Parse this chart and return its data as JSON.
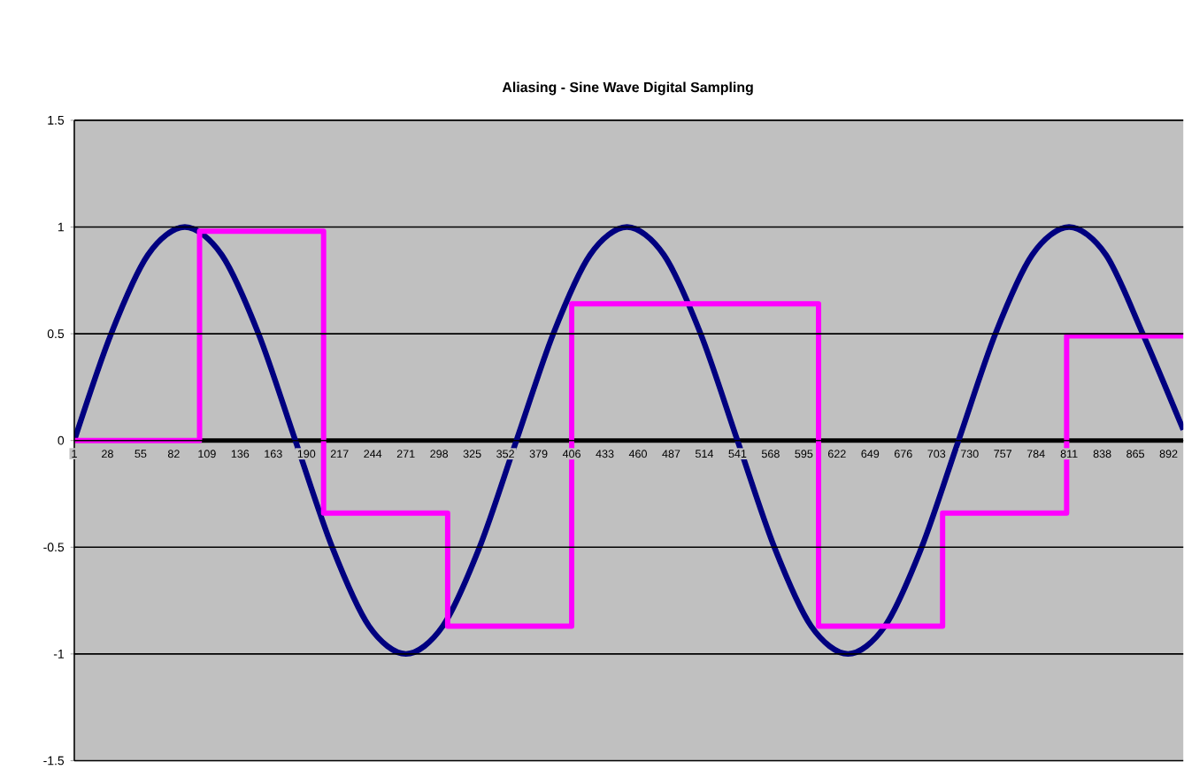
{
  "chart_data": {
    "type": "line",
    "title": "Aliasing - Sine Wave Digital Sampling",
    "xlim": [
      1,
      904
    ],
    "ylim": [
      -1.5,
      1.5
    ],
    "xticks": [
      1,
      28,
      55,
      82,
      109,
      136,
      163,
      190,
      217,
      244,
      271,
      298,
      325,
      352,
      379,
      406,
      433,
      460,
      487,
      514,
      541,
      568,
      595,
      622,
      649,
      676,
      703,
      730,
      757,
      784,
      811,
      838,
      865,
      892
    ],
    "yticks": [
      -1.5,
      -1,
      -0.5,
      0,
      0.5,
      1,
      1.5
    ],
    "grid": "y",
    "marker": "none",
    "series": [
      {
        "color": "#000080",
        "x": [
          1,
          31,
          61,
          91,
          121,
          151,
          181,
          211,
          241,
          271,
          301,
          331,
          361,
          391,
          421,
          451,
          481,
          511,
          541,
          571,
          601,
          631,
          661,
          691,
          721,
          751,
          781,
          811,
          841,
          871,
          904
        ],
        "values": [
          0,
          0.5,
          0.87,
          1,
          0.87,
          0.5,
          0,
          -0.5,
          -0.87,
          -1,
          -0.87,
          -0.5,
          0,
          0.5,
          0.87,
          1,
          0.87,
          0.5,
          0,
          -0.5,
          -0.87,
          -1,
          -0.87,
          -0.5,
          0,
          0.5,
          0.87,
          1,
          0.87,
          0.5,
          0.05
        ]
      },
      {
        "type": "step",
        "color": "#ff00ff",
        "x": [
          1,
          103,
          204,
          305,
          406,
          607,
          708,
          809,
          904
        ],
        "values": [
          0,
          0.98,
          -0.34,
          -0.87,
          0.64,
          -0.87,
          -0.34,
          0.49,
          0.49
        ]
      }
    ]
  }
}
